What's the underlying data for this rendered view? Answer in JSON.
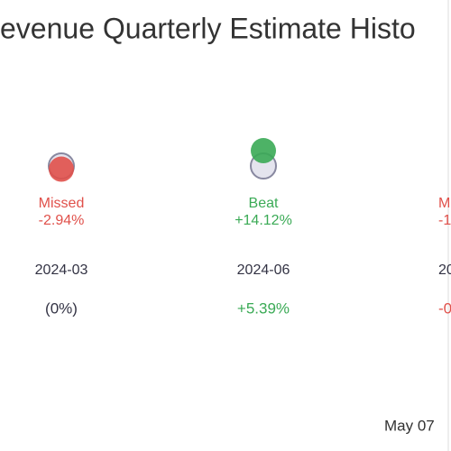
{
  "chart_data": {
    "type": "estimate-dots",
    "title": "evenue Quarterly Estimate Histo",
    "categories": [
      "2024-03",
      "2024-06",
      "20"
    ],
    "results": [
      "Missed",
      "Beat",
      "M"
    ],
    "values": [
      -2.94,
      14.12,
      null
    ],
    "value_labels": [
      "-2.94%",
      "+14.12%",
      "-1"
    ],
    "changes": [
      0,
      5.39,
      null
    ],
    "change_labels": [
      "(0%)",
      "+5.39%",
      "-0"
    ],
    "colors": [
      "#e0504a",
      "#3aaa55",
      "#e0504a"
    ],
    "change_colors": [
      "#333344",
      "#3aaa55",
      "#e0504a"
    ],
    "date": "May 07"
  }
}
